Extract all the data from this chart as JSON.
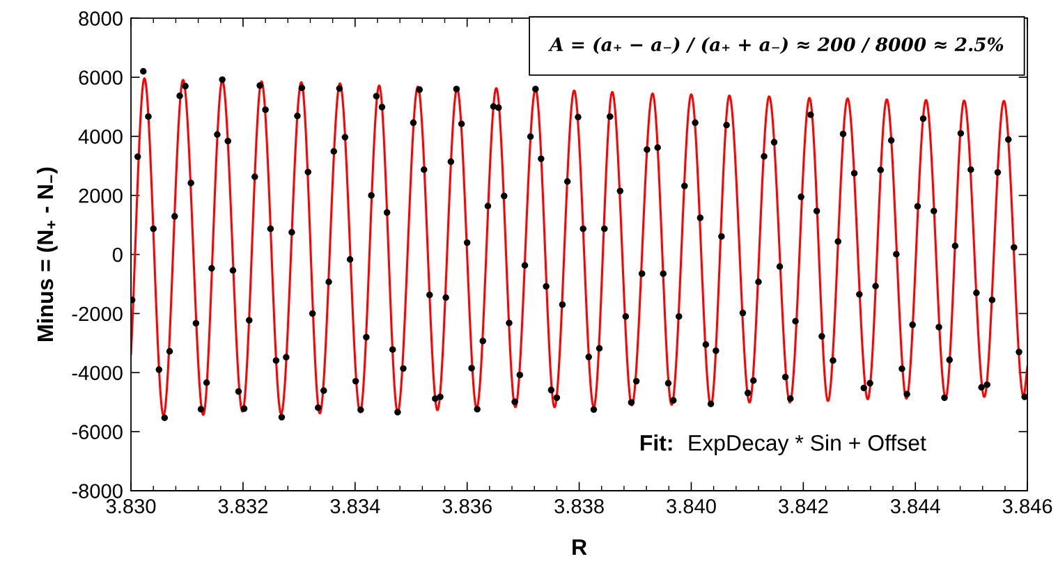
{
  "chart_data": {
    "type": "scatter",
    "xlabel": "R",
    "ylabel": "Minus = (N$_{+}$ - N$_{−}$)",
    "annotations": [
      "A = (a₊ − a₋) / (a₊ + a₋) ≈ 200 / 8000 ≈ 2.5%",
      "Fit:",
      "ExpDecay * Sin + Offset"
    ],
    "xlim": [
      3.83,
      3.846
    ],
    "xticks": [
      {
        "value": 3.83,
        "label": "3.830"
      },
      {
        "value": 3.832,
        "label": "3.832"
      },
      {
        "value": 3.834,
        "label": "3.834"
      },
      {
        "value": 3.836,
        "label": "3.836"
      },
      {
        "value": 3.838,
        "label": "3.838"
      },
      {
        "value": 3.84,
        "label": "3.840"
      },
      {
        "value": 3.842,
        "label": "3.842"
      },
      {
        "value": 3.844,
        "label": "3.844"
      },
      {
        "value": 3.846,
        "label": "3.846"
      }
    ],
    "ylim": [
      -8000,
      8000
    ],
    "yticks": [
      -8000,
      -6000,
      -4000,
      -2000,
      0,
      2000,
      4000,
      6000,
      8000
    ],
    "series": [
      {
        "type": "line",
        "color": "#ff0000",
        "line_style": "solid",
        "x": [
          3.83,
          3.83024,
          3.83058,
          3.83093,
          3.83129,
          3.83163,
          3.83199,
          3.83233,
          3.83268,
          3.83304,
          3.83337,
          3.83373,
          3.83409,
          3.83443,
          3.83476,
          3.83512,
          3.83547,
          3.83582,
          3.83617,
          3.83652,
          3.83686,
          3.83722,
          3.83756,
          3.83791,
          3.83826,
          3.83859,
          3.83894,
          3.83931,
          3.83965,
          3.84,
          3.84035,
          3.84068,
          3.84104,
          3.84139,
          3.84176,
          3.84211,
          3.84244,
          3.84279,
          3.84315,
          3.84349,
          3.84384,
          3.84419,
          3.84454,
          3.84487,
          3.84523,
          3.84558,
          3.84593,
          3.846
        ],
        "values": [
          -3380,
          5960,
          -5450,
          5910,
          -5430,
          5890,
          -5320,
          5860,
          -5400,
          5830,
          -5380,
          5790,
          -5340,
          5720,
          -5340,
          5680,
          -5270,
          5620,
          -5200,
          5630,
          -5170,
          5600,
          -5170,
          5550,
          -5170,
          5500,
          -5110,
          5450,
          -5090,
          5420,
          -5130,
          5380,
          -5010,
          5350,
          -5010,
          5300,
          -4960,
          5280,
          -4900,
          5250,
          -4880,
          5230,
          -4850,
          5210,
          -4820,
          5200,
          -4800,
          -3800
        ]
      },
      {
        "color": "#000000",
        "marker": "circle",
        "x": [
          3.83002,
          3.83012,
          3.83022,
          3.83031,
          3.8304,
          3.8305,
          3.8306,
          3.83069,
          3.83078,
          3.83087,
          3.83097,
          3.83107,
          3.83116,
          3.83125,
          3.83135,
          3.83144,
          3.83154,
          3.83163,
          3.83173,
          3.83182,
          3.83192,
          3.83202,
          3.83211,
          3.83221,
          3.8323,
          3.8324,
          3.83249,
          3.83259,
          3.83269,
          3.83277,
          3.83287,
          3.83297,
          3.83305,
          3.83316,
          3.83324,
          3.83334,
          3.83344,
          3.83353,
          3.83362,
          3.83372,
          3.83382,
          3.83391,
          3.83401,
          3.8341,
          3.8342,
          3.83429,
          3.83438,
          3.83448,
          3.83457,
          3.83467,
          3.83476,
          3.83486,
          3.83504,
          3.83515,
          3.83523,
          3.83533,
          3.83543,
          3.83552,
          3.83562,
          3.83571,
          3.83581,
          3.8359,
          3.836,
          3.83608,
          3.83618,
          3.83628,
          3.83637,
          3.83647,
          3.83656,
          3.83666,
          3.83675,
          3.83685,
          3.83694,
          3.83703,
          3.83713,
          3.83722,
          3.83732,
          3.83741,
          3.8375,
          3.8376,
          3.8377,
          3.83779,
          3.83788,
          3.83798,
          3.83807,
          3.83817,
          3.83826,
          3.83836,
          3.83845,
          3.83855,
          3.83864,
          3.83873,
          3.83883,
          3.83893,
          3.83902,
          3.83912,
          3.83921,
          3.83931,
          3.8394,
          3.8395,
          3.83959,
          3.83968,
          3.83978,
          3.83988,
          3.83997,
          3.84007,
          3.84016,
          3.84026,
          3.84035,
          3.84044,
          3.84054,
          3.84063,
          3.84073,
          3.84082,
          3.84092,
          3.84101,
          3.84111,
          3.8412,
          3.8413,
          3.84139,
          3.84148,
          3.84158,
          3.84168,
          3.84177,
          3.84186,
          3.84196,
          3.84206,
          3.84213,
          3.84224,
          3.84233,
          3.84253,
          3.84262,
          3.84271,
          3.84281,
          3.84291,
          3.843,
          3.84308,
          3.84319,
          3.84329,
          3.84338,
          3.84348,
          3.84357,
          3.84366,
          3.84376,
          3.84385,
          3.84395,
          3.84404,
          3.84414,
          3.84423,
          3.84433,
          3.84442,
          3.84452,
          3.84461,
          3.84471,
          3.84481,
          3.8449,
          3.84499,
          3.84509,
          3.84518,
          3.84528,
          3.84537,
          3.84547,
          3.84556,
          3.84566,
          3.84576,
          3.84585,
          3.84595
        ],
        "values": [
          -1540,
          3310,
          6200,
          4670,
          870,
          -3900,
          -5530,
          -3280,
          1290,
          5370,
          5700,
          2420,
          -2330,
          -5240,
          -4340,
          -470,
          4060,
          5920,
          3840,
          -540,
          -4640,
          -5220,
          -2230,
          2630,
          5720,
          4900,
          870,
          -3590,
          -5510,
          -3480,
          750,
          4690,
          5640,
          2790,
          -2000,
          -5190,
          -4610,
          -930,
          3490,
          5620,
          3970,
          -170,
          -4290,
          -5260,
          -2800,
          2000,
          5360,
          4990,
          1420,
          -3220,
          -5340,
          -3860,
          4460,
          5580,
          2870,
          -1370,
          -4880,
          -4820,
          -1460,
          3140,
          5600,
          4420,
          400,
          -3850,
          -5240,
          -2930,
          1640,
          5010,
          4970,
          1980,
          -2320,
          -4990,
          -4080,
          -370,
          3990,
          5600,
          3240,
          -1080,
          -4590,
          -4850,
          -1700,
          2470,
          null,
          4650,
          870,
          -3470,
          -5250,
          -3180,
          870,
          4670,
          null,
          2150,
          -2100,
          -5010,
          -4290,
          -650,
          3550,
          null,
          3620,
          -650,
          -4360,
          -4940,
          -2100,
          2320,
          null,
          4460,
          1240,
          -3050,
          -5060,
          -3260,
          610,
          4380,
          null,
          null,
          -1980,
          -4690,
          -4270,
          -930,
          3320,
          null,
          3800,
          -410,
          -4150,
          -4880,
          -2260,
          1950,
          null,
          4730,
          1470,
          -2770,
          -3590,
          440,
          4080,
          null,
          2750,
          -1350,
          -4520,
          -4360,
          -1070,
          2860,
          null,
          3860,
          10,
          -3870,
          -4730,
          -2380,
          1630,
          4600,
          null,
          1470,
          -2460,
          -4850,
          -3570,
          290,
          4100,
          null,
          2870,
          -1300,
          -4500,
          -4410,
          -1540,
          2780,
          null,
          3890,
          240,
          -3300,
          -4820
        ]
      }
    ]
  }
}
